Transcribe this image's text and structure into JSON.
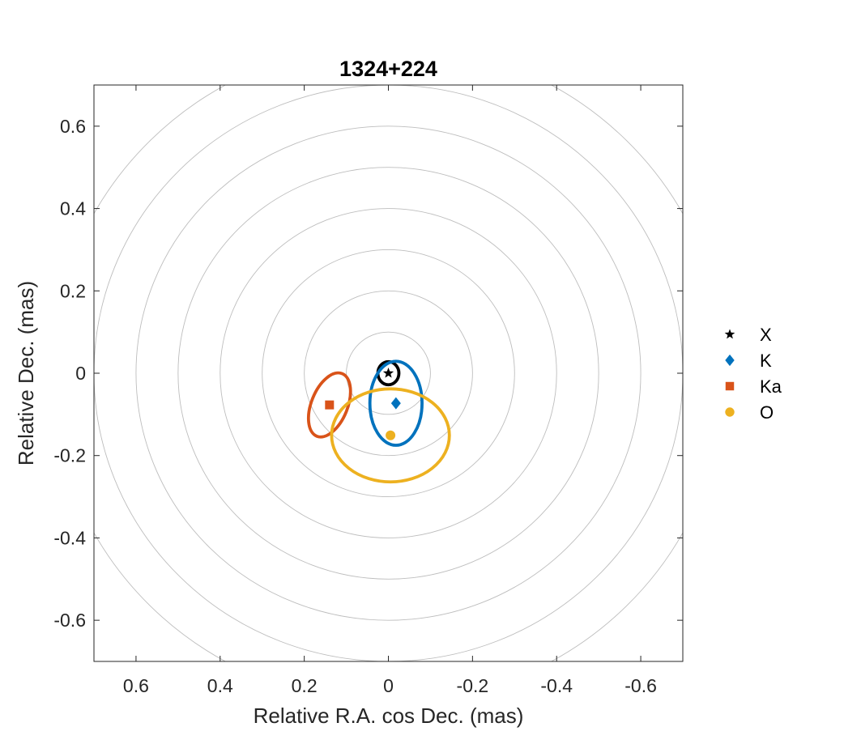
{
  "chart_data": {
    "type": "scatter",
    "title": "1324+224",
    "xlabel": "Relative R.A. cos Dec. (mas)",
    "ylabel": "Relative Dec. (mas)",
    "xlim": [
      0.7,
      -0.7
    ],
    "ylim": [
      -0.7,
      0.7
    ],
    "x_reversed": true,
    "x_ticks": [
      0.6,
      0.4,
      0.2,
      0,
      -0.2,
      -0.4,
      -0.6
    ],
    "x_tick_labels": [
      "0.6",
      "0.4",
      "0.2",
      "0",
      "-0.2",
      "-0.4",
      "-0.6"
    ],
    "y_ticks": [
      0.6,
      0.4,
      0.2,
      0,
      -0.2,
      -0.4,
      -0.6
    ],
    "y_tick_labels": [
      "0.6",
      "0.4",
      "0.2",
      "0",
      "-0.2",
      "-0.4",
      "-0.6"
    ],
    "grid": false,
    "reference_circle_radii": [
      0.1,
      0.2,
      0.3,
      0.4,
      0.5,
      0.6,
      0.7,
      0.8
    ],
    "reference_circle_color": "#bdbdbd",
    "legend_position": "outside-right",
    "series": [
      {
        "name": "X",
        "marker": "star",
        "color": "#000000",
        "x": 0.0,
        "y": 0.0,
        "ellipse": {
          "a": 0.025,
          "b": 0.028,
          "angle": 0
        }
      },
      {
        "name": "K",
        "marker": "diamond",
        "color": "#0072BD",
        "x": -0.018,
        "y": -0.073,
        "ellipse": {
          "a": 0.062,
          "b": 0.102,
          "angle": 0
        }
      },
      {
        "name": "Ka",
        "marker": "square",
        "color": "#D95319",
        "x": 0.14,
        "y": -0.077,
        "ellipse": {
          "a": 0.043,
          "b": 0.082,
          "angle": 22
        }
      },
      {
        "name": "O",
        "marker": "circle",
        "color": "#EDB120",
        "x": -0.005,
        "y": -0.151,
        "ellipse": {
          "a": 0.14,
          "b": 0.113,
          "angle": 0
        }
      }
    ]
  }
}
